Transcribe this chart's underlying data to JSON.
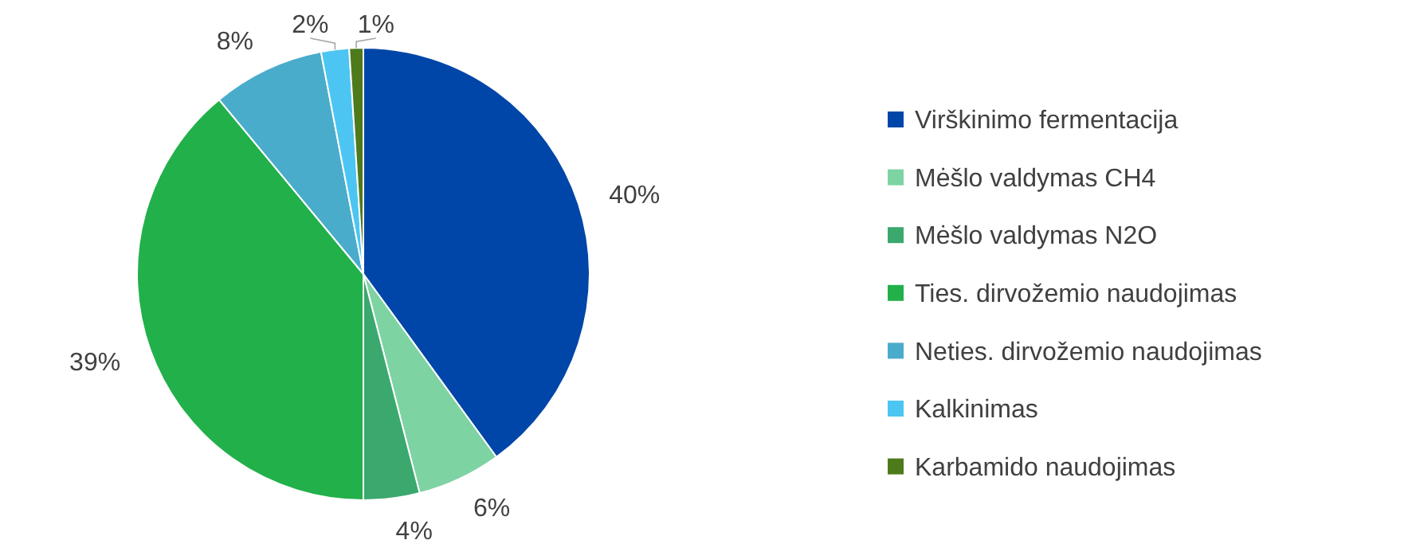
{
  "chart_data": {
    "type": "pie",
    "categories": [
      "Virškinimo fermentacija",
      "Mėšlo valdymas CH4",
      "Mėšlo valdymas N2O",
      "Ties. dirvožemio naudojimas",
      "Neties. dirvožemio naudojimas",
      "Kalkinimas",
      "Karbamido naudojimas"
    ],
    "values": [
      40,
      6,
      4,
      39,
      8,
      2,
      1
    ],
    "colors": [
      "#0046a8",
      "#7ed3a3",
      "#3ba86e",
      "#22b04b",
      "#4aaccb",
      "#4cc5f2",
      "#4e7a1c"
    ],
    "value_labels": [
      "40%",
      "6%",
      "4%",
      "39%",
      "8%",
      "2%",
      "1%"
    ],
    "legend": "right"
  }
}
